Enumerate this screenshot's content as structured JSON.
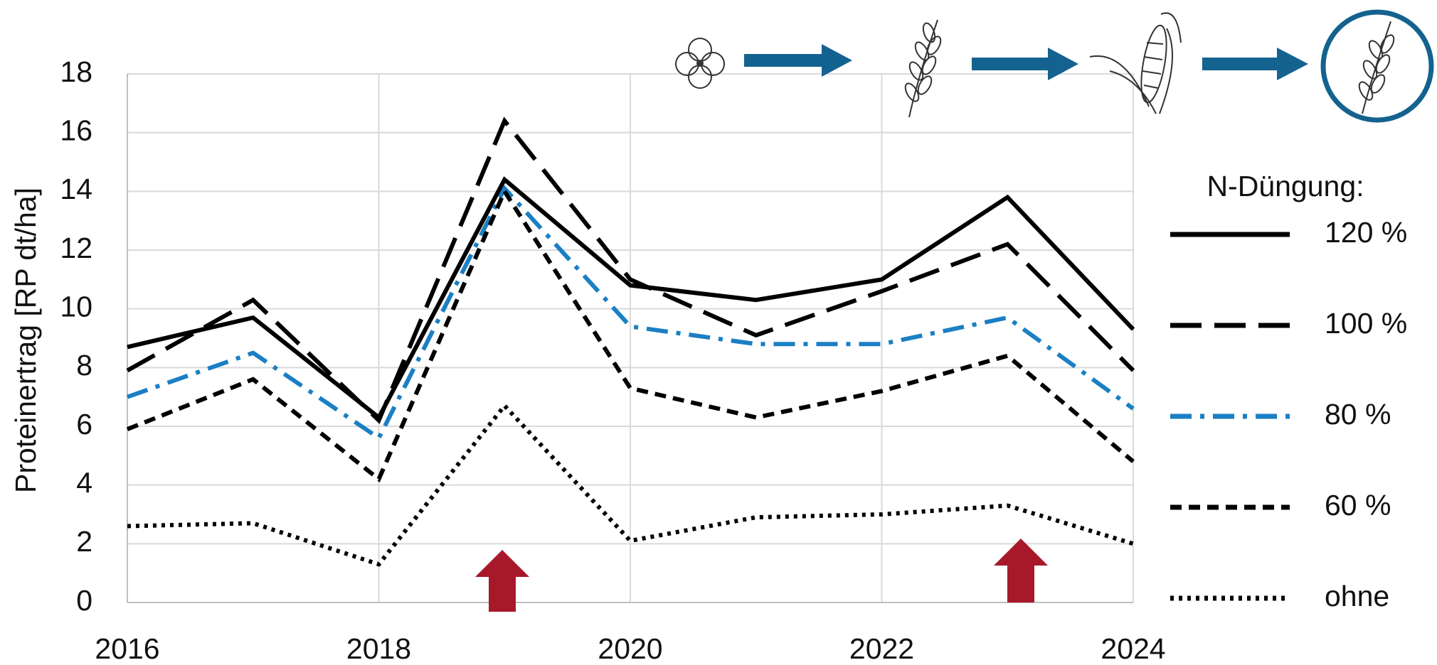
{
  "chart_data": {
    "type": "line",
    "ylabel": "Proteinertrag [RP dt/ha]",
    "legend_title": "N-Düngung:",
    "x": [
      2016,
      2017,
      2018,
      2019,
      2020,
      2021,
      2022,
      2023,
      2024
    ],
    "xlim": [
      2016,
      2024
    ],
    "xticks": [
      2016,
      2018,
      2020,
      2022,
      2024
    ],
    "ylim": [
      0,
      18
    ],
    "yticks": [
      0,
      2,
      4,
      6,
      8,
      10,
      12,
      14,
      16,
      18
    ],
    "grid": true,
    "legend": "right",
    "series": [
      {
        "name": "120 %",
        "color": "#000000",
        "dash": "solid",
        "values": [
          8.7,
          9.7,
          6.3,
          14.4,
          10.8,
          10.3,
          11.0,
          13.8,
          9.3
        ]
      },
      {
        "name": "100 %",
        "color": "#000000",
        "dash": "long",
        "values": [
          7.9,
          10.3,
          6.2,
          16.4,
          11.0,
          9.1,
          10.6,
          12.2,
          7.9
        ]
      },
      {
        "name": "80 %",
        "color": "#1b7fc4",
        "dash": "dashdot",
        "values": [
          7.0,
          8.5,
          5.6,
          14.1,
          9.4,
          8.8,
          8.8,
          9.7,
          6.6
        ]
      },
      {
        "name": "60 %",
        "color": "#000000",
        "dash": "short",
        "values": [
          5.9,
          7.6,
          4.2,
          14.0,
          7.3,
          6.3,
          7.2,
          8.4,
          4.8
        ]
      },
      {
        "name": "ohne",
        "color": "#000000",
        "dash": "dotted",
        "values": [
          2.6,
          2.7,
          1.3,
          6.7,
          2.1,
          2.9,
          3.0,
          3.3,
          2.0
        ]
      }
    ]
  }
}
